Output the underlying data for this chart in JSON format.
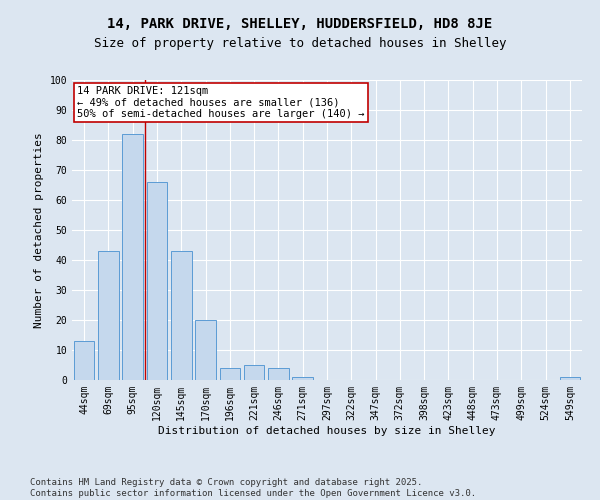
{
  "title1": "14, PARK DRIVE, SHELLEY, HUDDERSFIELD, HD8 8JE",
  "title2": "Size of property relative to detached houses in Shelley",
  "xlabel": "Distribution of detached houses by size in Shelley",
  "ylabel": "Number of detached properties",
  "categories": [
    "44sqm",
    "69sqm",
    "95sqm",
    "120sqm",
    "145sqm",
    "170sqm",
    "196sqm",
    "221sqm",
    "246sqm",
    "271sqm",
    "297sqm",
    "322sqm",
    "347sqm",
    "372sqm",
    "398sqm",
    "423sqm",
    "448sqm",
    "473sqm",
    "499sqm",
    "524sqm",
    "549sqm"
  ],
  "values": [
    13,
    43,
    82,
    66,
    43,
    20,
    4,
    5,
    4,
    1,
    0,
    0,
    0,
    0,
    0,
    0,
    0,
    0,
    0,
    0,
    1
  ],
  "bar_color": "#c5d8ed",
  "bar_edge_color": "#5b9bd5",
  "highlight_index": 3,
  "highlight_line_color": "#c00000",
  "annotation_text": "14 PARK DRIVE: 121sqm\n← 49% of detached houses are smaller (136)\n50% of semi-detached houses are larger (140) →",
  "annotation_box_color": "#ffffff",
  "annotation_box_edge_color": "#c00000",
  "ylim": [
    0,
    100
  ],
  "yticks": [
    0,
    10,
    20,
    30,
    40,
    50,
    60,
    70,
    80,
    90,
    100
  ],
  "background_color": "#dce6f1",
  "plot_bg_color": "#dce6f1",
  "footer_text": "Contains HM Land Registry data © Crown copyright and database right 2025.\nContains public sector information licensed under the Open Government Licence v3.0.",
  "title_fontsize": 10,
  "subtitle_fontsize": 9,
  "axis_label_fontsize": 8,
  "tick_fontsize": 7,
  "annotation_fontsize": 7.5,
  "footer_fontsize": 6.5
}
